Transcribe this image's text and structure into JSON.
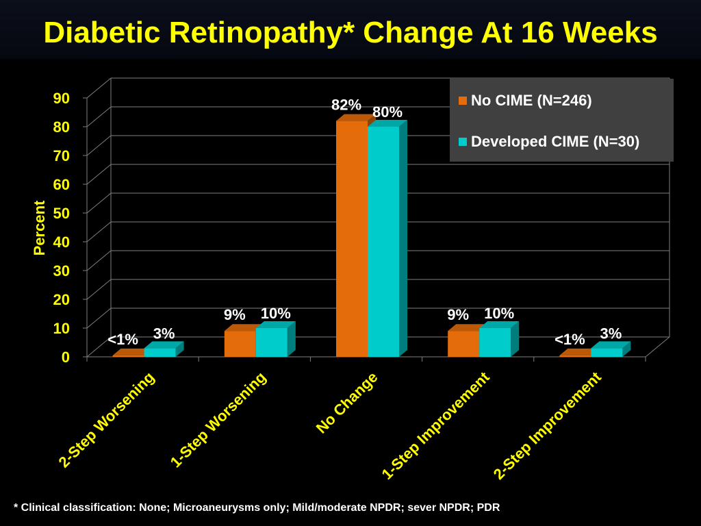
{
  "title": "Diabetic Retinopathy* Change At 16 Weeks",
  "footnote": "* Clinical classification: None; Microaneurysms only; Mild/moderate NPDR; sever NPDR; PDR",
  "chart_data": {
    "type": "bar",
    "title": "Diabetic Retinopathy* Change At 16 Weeks",
    "xlabel": "",
    "ylabel": "Percent",
    "ylim": [
      0,
      90
    ],
    "yticks": [
      0,
      10,
      20,
      30,
      40,
      50,
      60,
      70,
      80,
      90
    ],
    "grid": true,
    "legend_position": "top-right",
    "categories": [
      "2-Step Worsening",
      "1-Step Worsening",
      "No Change",
      "1-Step Improvement",
      "2-Step Improvement"
    ],
    "series": [
      {
        "name": "No CIME (N=246)",
        "color": "#e46c0a",
        "values": [
          0.5,
          9,
          82,
          9,
          0.5
        ],
        "labels": [
          "<1%",
          "9%",
          "82%",
          "9%",
          "<1%"
        ]
      },
      {
        "name": "Developed CIME (N=30)",
        "color": "#00cccc",
        "values": [
          3,
          10,
          80,
          10,
          3
        ],
        "labels": [
          "3%",
          "10%",
          "80%",
          "10%",
          "3%"
        ]
      }
    ]
  },
  "colors": {
    "title": "#ffff00",
    "axis_text": "#ffff00",
    "category_text": "#ffff00",
    "data_label_text": "#ffffff",
    "grid": "#7f7f7f",
    "legend_bg": "#404040"
  }
}
